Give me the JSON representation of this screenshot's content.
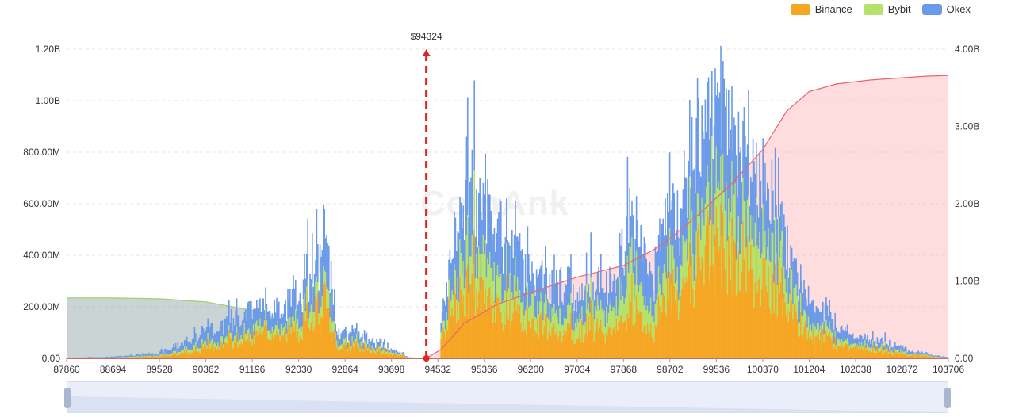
{
  "legend": [
    {
      "label": "Binance",
      "color": "#F5A623"
    },
    {
      "label": "Bybit",
      "color": "#B5E26A"
    },
    {
      "label": "Okex",
      "color": "#6B9AE8"
    }
  ],
  "watermark": "CoinAnk",
  "chart_data": {
    "type": "bar",
    "title": "",
    "current_price_label": "$94324",
    "current_price": 94324,
    "x_tick_labels": [
      "87860",
      "88694",
      "89528",
      "90362",
      "91196",
      "92030",
      "92864",
      "93698",
      "94532",
      "95366",
      "96200",
      "97034",
      "97868",
      "98702",
      "99536",
      "100370",
      "101204",
      "102038",
      "102872",
      "103706"
    ],
    "xlim": [
      87860,
      103706
    ],
    "y_left_ticks": [
      "0.00",
      "200.00M",
      "400.00M",
      "600.00M",
      "800.00M",
      "1.00B",
      "1.20B"
    ],
    "y_left_range": [
      0,
      1200000000
    ],
    "y_right_ticks": [
      "0.00",
      "1.00B",
      "2.00B",
      "3.00B",
      "4.00B"
    ],
    "y_right_range": [
      0,
      4000000000
    ],
    "stack_order": [
      "Binance",
      "Bybit",
      "Okex"
    ],
    "series_anchor_points": {
      "x": [
        87860,
        88694,
        89528,
        90000,
        90362,
        90800,
        91196,
        91500,
        91800,
        92030,
        92300,
        92500,
        92700,
        92864,
        93200,
        93500,
        93698,
        93900,
        94000,
        94324,
        94500,
        94700,
        94900,
        95100,
        95366,
        95600,
        95800,
        96000,
        96200,
        96500,
        96800,
        97034,
        97300,
        97500,
        97700,
        97868,
        98000,
        98200,
        98400,
        98702,
        98800,
        99100,
        99300,
        99536,
        99800,
        100000,
        100200,
        100370,
        100600,
        100800,
        101000,
        101204,
        101500,
        101800,
        102038,
        102300,
        102600,
        102872,
        103100,
        103400,
        103706
      ],
      "Binance": [
        1,
        2,
        8,
        25,
        40,
        58,
        80,
        92,
        90,
        115,
        175,
        210,
        55,
        45,
        40,
        32,
        18,
        8,
        2,
        0,
        0,
        160,
        220,
        260,
        210,
        190,
        170,
        155,
        140,
        120,
        110,
        100,
        120,
        95,
        105,
        140,
        240,
        135,
        110,
        320,
        200,
        340,
        400,
        440,
        400,
        380,
        340,
        330,
        300,
        220,
        150,
        90,
        80,
        50,
        35,
        40,
        25,
        18,
        12,
        6,
        2
      ],
      "Bybit": [
        0.5,
        1,
        4,
        12,
        18,
        22,
        30,
        30,
        30,
        42,
        60,
        70,
        20,
        15,
        14,
        12,
        7,
        3,
        1,
        0,
        0,
        60,
        100,
        150,
        140,
        115,
        100,
        85,
        75,
        70,
        65,
        60,
        80,
        75,
        70,
        110,
        160,
        100,
        75,
        130,
        100,
        150,
        170,
        220,
        200,
        180,
        170,
        160,
        140,
        100,
        70,
        40,
        30,
        20,
        14,
        15,
        10,
        7,
        5,
        2,
        1
      ],
      "Okex": [
        1,
        3,
        10,
        30,
        50,
        65,
        90,
        75,
        80,
        95,
        140,
        180,
        45,
        40,
        30,
        22,
        12,
        5,
        1,
        0,
        0,
        100,
        250,
        260,
        230,
        200,
        180,
        160,
        140,
        130,
        125,
        90,
        110,
        100,
        100,
        170,
        230,
        160,
        140,
        250,
        200,
        300,
        310,
        340,
        300,
        280,
        260,
        220,
        190,
        160,
        120,
        80,
        60,
        40,
        30,
        30,
        22,
        17,
        10,
        5,
        2
      ]
    },
    "cumulative_short": {
      "x": [
        94324,
        94600,
        95000,
        95600,
        96200,
        97034,
        97868,
        98400,
        98702,
        99200,
        99800,
        100370,
        100800,
        101204,
        101700,
        102300,
        102872,
        103300,
        103706
      ],
      "values": [
        0,
        0.12,
        0.45,
        0.7,
        0.85,
        1.05,
        1.2,
        1.4,
        1.55,
        1.85,
        2.25,
        2.7,
        3.2,
        3.45,
        3.55,
        3.6,
        3.63,
        3.65,
        3.66
      ]
    },
    "cumulative_long": {
      "x": [
        87860,
        88694,
        89528,
        90362,
        91196,
        92030,
        92864,
        93300,
        93698,
        94100,
        94324
      ],
      "values": [
        0.78,
        0.78,
        0.77,
        0.73,
        0.62,
        0.4,
        0.14,
        0.05,
        0.02,
        0.005,
        0
      ]
    }
  }
}
